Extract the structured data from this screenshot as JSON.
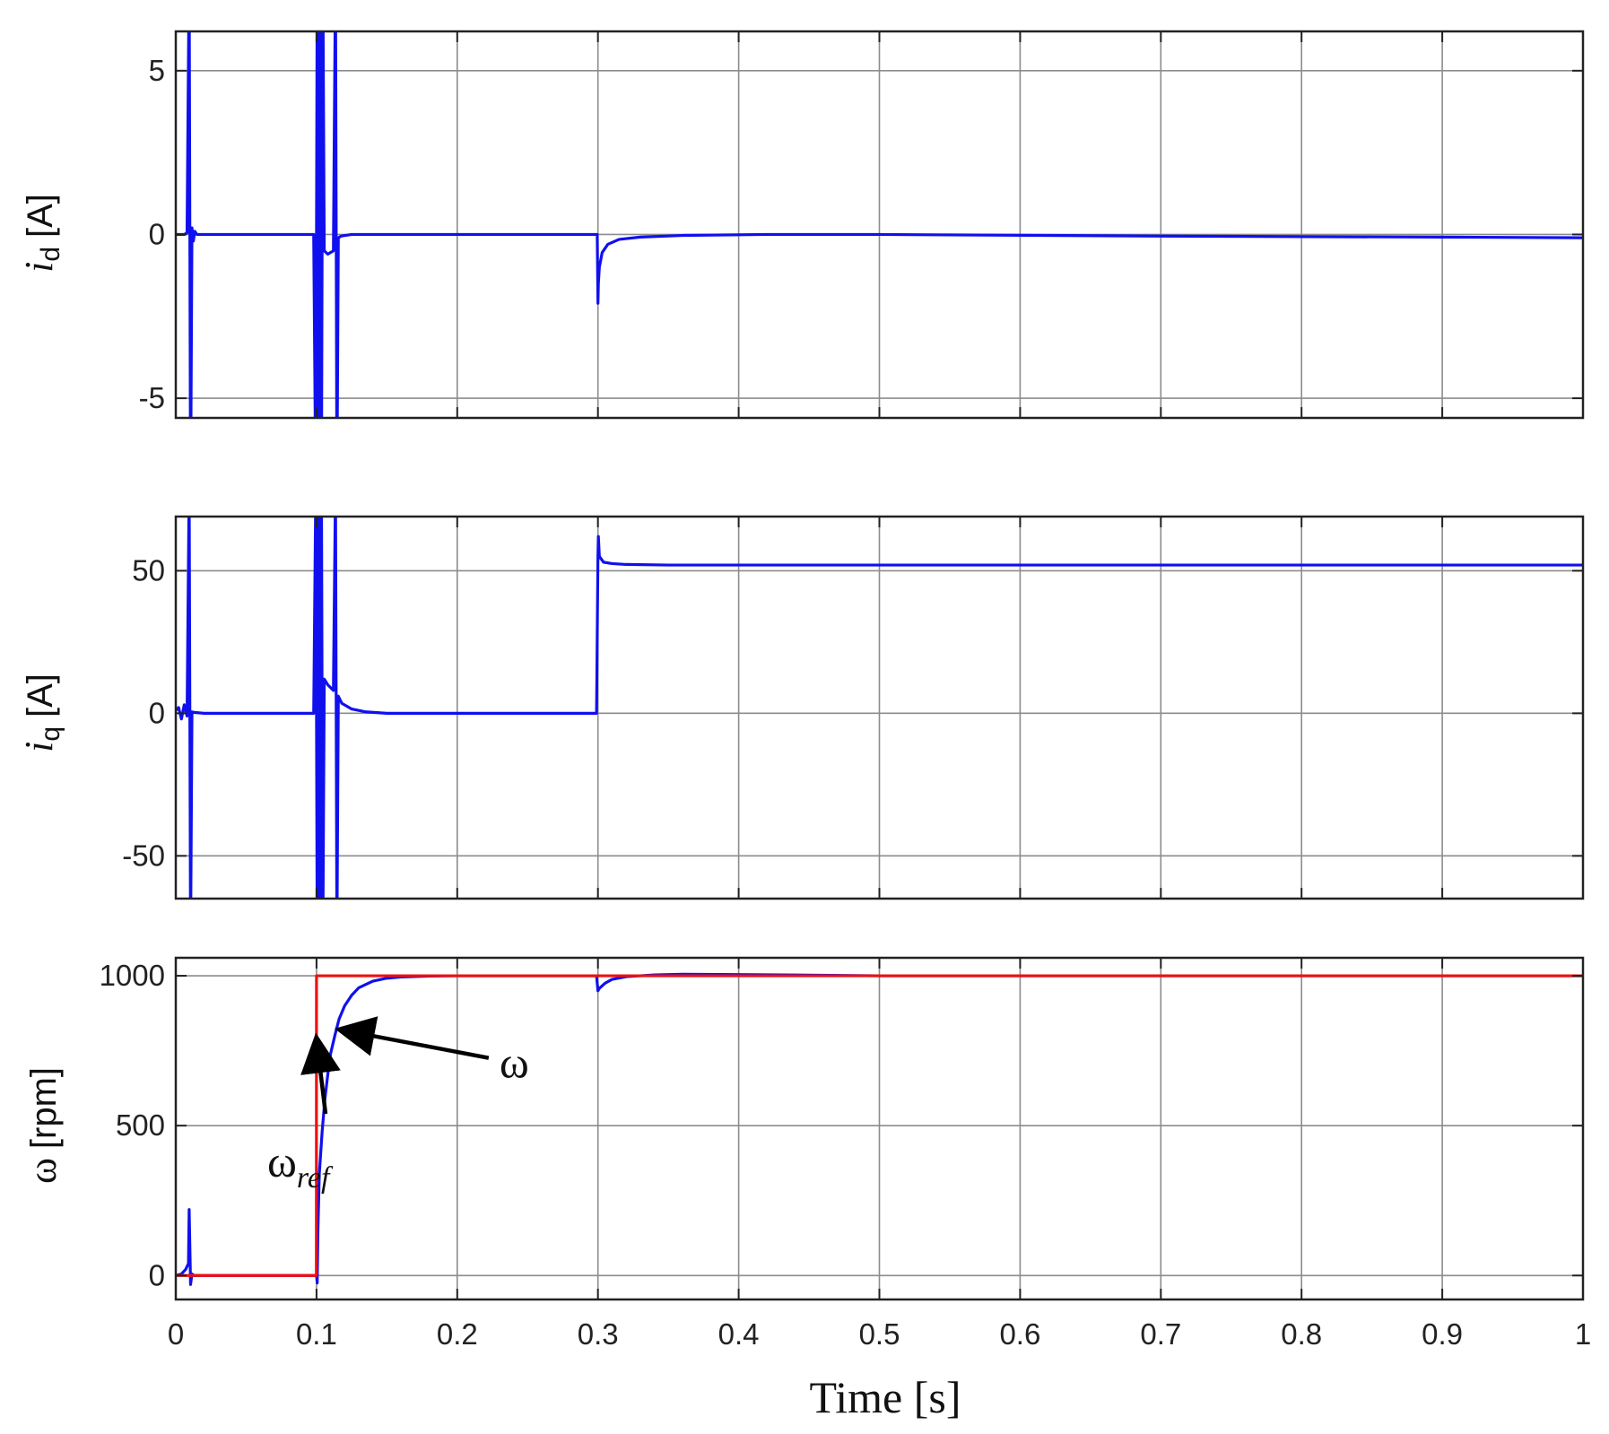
{
  "chart_data": [
    {
      "type": "line",
      "ylabel": {
        "main": "i",
        "sub": "d",
        "unit": "[A]"
      },
      "xlim": [
        0,
        1
      ],
      "ylim": [
        -5.6,
        6.2
      ],
      "yticks": [
        -5,
        0,
        5
      ],
      "ytick_labels": [
        "-5",
        "0",
        "5"
      ],
      "grid": true,
      "color": "#1010ee",
      "series": [
        {
          "x": [
            0,
            0.006,
            0.008,
            0.0095,
            0.0105,
            0.0115,
            0.0125,
            0.0135,
            0.015,
            0.02,
            0.05,
            0.098,
            0.0995,
            0.1005,
            0.1015,
            0.1025,
            0.1035,
            0.1045,
            0.1055,
            0.108,
            0.112,
            0.1135,
            0.1145,
            0.1155,
            0.1175,
            0.125,
            0.14,
            0.2,
            0.2995,
            0.3,
            0.3003,
            0.301,
            0.303,
            0.307,
            0.315,
            0.33,
            0.36,
            0.42,
            0.5,
            0.7,
            0.9,
            1.0
          ],
          "y": [
            0,
            0,
            0.05,
            8,
            -8,
            0.2,
            -0.2,
            0.1,
            0,
            0,
            0,
            0,
            -8,
            8,
            -8,
            8,
            -8,
            8,
            -0.5,
            -0.6,
            -0.5,
            8,
            -8,
            -0.1,
            -0.05,
            0,
            0,
            0,
            0,
            -2.1,
            -1.5,
            -1.0,
            -0.55,
            -0.3,
            -0.15,
            -0.08,
            -0.03,
            0,
            0,
            -0.05,
            -0.08,
            -0.1
          ]
        }
      ]
    },
    {
      "type": "line",
      "ylabel": {
        "main": "i",
        "sub": "q",
        "unit": "[A]"
      },
      "xlim": [
        0,
        1
      ],
      "ylim": [
        -65,
        69
      ],
      "yticks": [
        -50,
        0,
        50
      ],
      "ytick_labels": [
        "-50",
        "0",
        "50"
      ],
      "grid": true,
      "color": "#1010ee",
      "series": [
        {
          "x": [
            0,
            0.002,
            0.004,
            0.006,
            0.008,
            0.0095,
            0.0105,
            0.0115,
            0.013,
            0.02,
            0.05,
            0.098,
            0.0995,
            0.1005,
            0.1015,
            0.1025,
            0.1035,
            0.1045,
            0.1055,
            0.108,
            0.112,
            0.1135,
            0.1145,
            0.1155,
            0.118,
            0.125,
            0.135,
            0.15,
            0.2,
            0.299,
            0.3,
            0.3003,
            0.301,
            0.304,
            0.31,
            0.32,
            0.35,
            0.5,
            0.7,
            1.0
          ],
          "y": [
            1,
            2,
            -2,
            3,
            -1,
            80,
            -80,
            0.5,
            0.3,
            0,
            0,
            0,
            80,
            -80,
            80,
            -80,
            80,
            -80,
            12,
            10,
            8,
            80,
            -80,
            6,
            3.5,
            1.5,
            0.5,
            0,
            0,
            0,
            55,
            62,
            55,
            53,
            52.5,
            52.2,
            52,
            52,
            52,
            52
          ]
        }
      ]
    },
    {
      "type": "line",
      "xlabel": "Time [s]",
      "ylabel": {
        "main": "ω",
        "sub": "",
        "unit": "[rpm]"
      },
      "xlim": [
        0,
        1
      ],
      "ylim": [
        -80,
        1060
      ],
      "xticks": [
        0,
        0.1,
        0.2,
        0.3,
        0.4,
        0.5,
        0.6,
        0.7,
        0.8,
        0.9,
        1
      ],
      "xtick_labels": [
        "0",
        "0.1",
        "0.2",
        "0.3",
        "0.4",
        "0.5",
        "0.6",
        "0.7",
        "0.8",
        "0.9",
        "1"
      ],
      "yticks": [
        0,
        500,
        1000
      ],
      "ytick_labels": [
        "0",
        "500",
        "1000"
      ],
      "grid": true,
      "series": [
        {
          "color": "#1010ee",
          "x": [
            0,
            0.004,
            0.007,
            0.009,
            0.0095,
            0.0105,
            0.0115,
            0.013,
            0.016,
            0.025,
            0.05,
            0.099,
            0.1,
            0.1005,
            0.101,
            0.102,
            0.104,
            0.106,
            0.108,
            0.11,
            0.113,
            0.116,
            0.12,
            0.125,
            0.13,
            0.14,
            0.15,
            0.16,
            0.18,
            0.2,
            0.25,
            0.299,
            0.3,
            0.301,
            0.305,
            0.31,
            0.32,
            0.34,
            0.36,
            0.4,
            0.45,
            0.5,
            0.7,
            1.0
          ],
          "y": [
            0,
            5,
            20,
            40,
            220,
            -30,
            5,
            0,
            0,
            0,
            0,
            0,
            0,
            -25,
            150,
            340,
            480,
            590,
            670,
            740,
            800,
            855,
            900,
            935,
            960,
            982,
            992,
            996,
            999,
            1000,
            1000,
            1000,
            950,
            958,
            975,
            988,
            997,
            1003,
            1005,
            1004,
            1002,
            1000,
            1000,
            1000
          ]
        },
        {
          "color": "#ee1010",
          "x": [
            0,
            0.0999,
            0.1,
            1.0
          ],
          "y": [
            0,
            0,
            1000,
            1000
          ]
        }
      ],
      "annotations": [
        {
          "text": "ω",
          "sub": "ref",
          "point": [
            0.1,
            790
          ],
          "label_at": [
            0.065,
            330
          ]
        },
        {
          "text": "ω",
          "sub": "",
          "point": [
            0.117,
            820
          ],
          "label_at": [
            0.23,
            660
          ]
        }
      ]
    }
  ]
}
